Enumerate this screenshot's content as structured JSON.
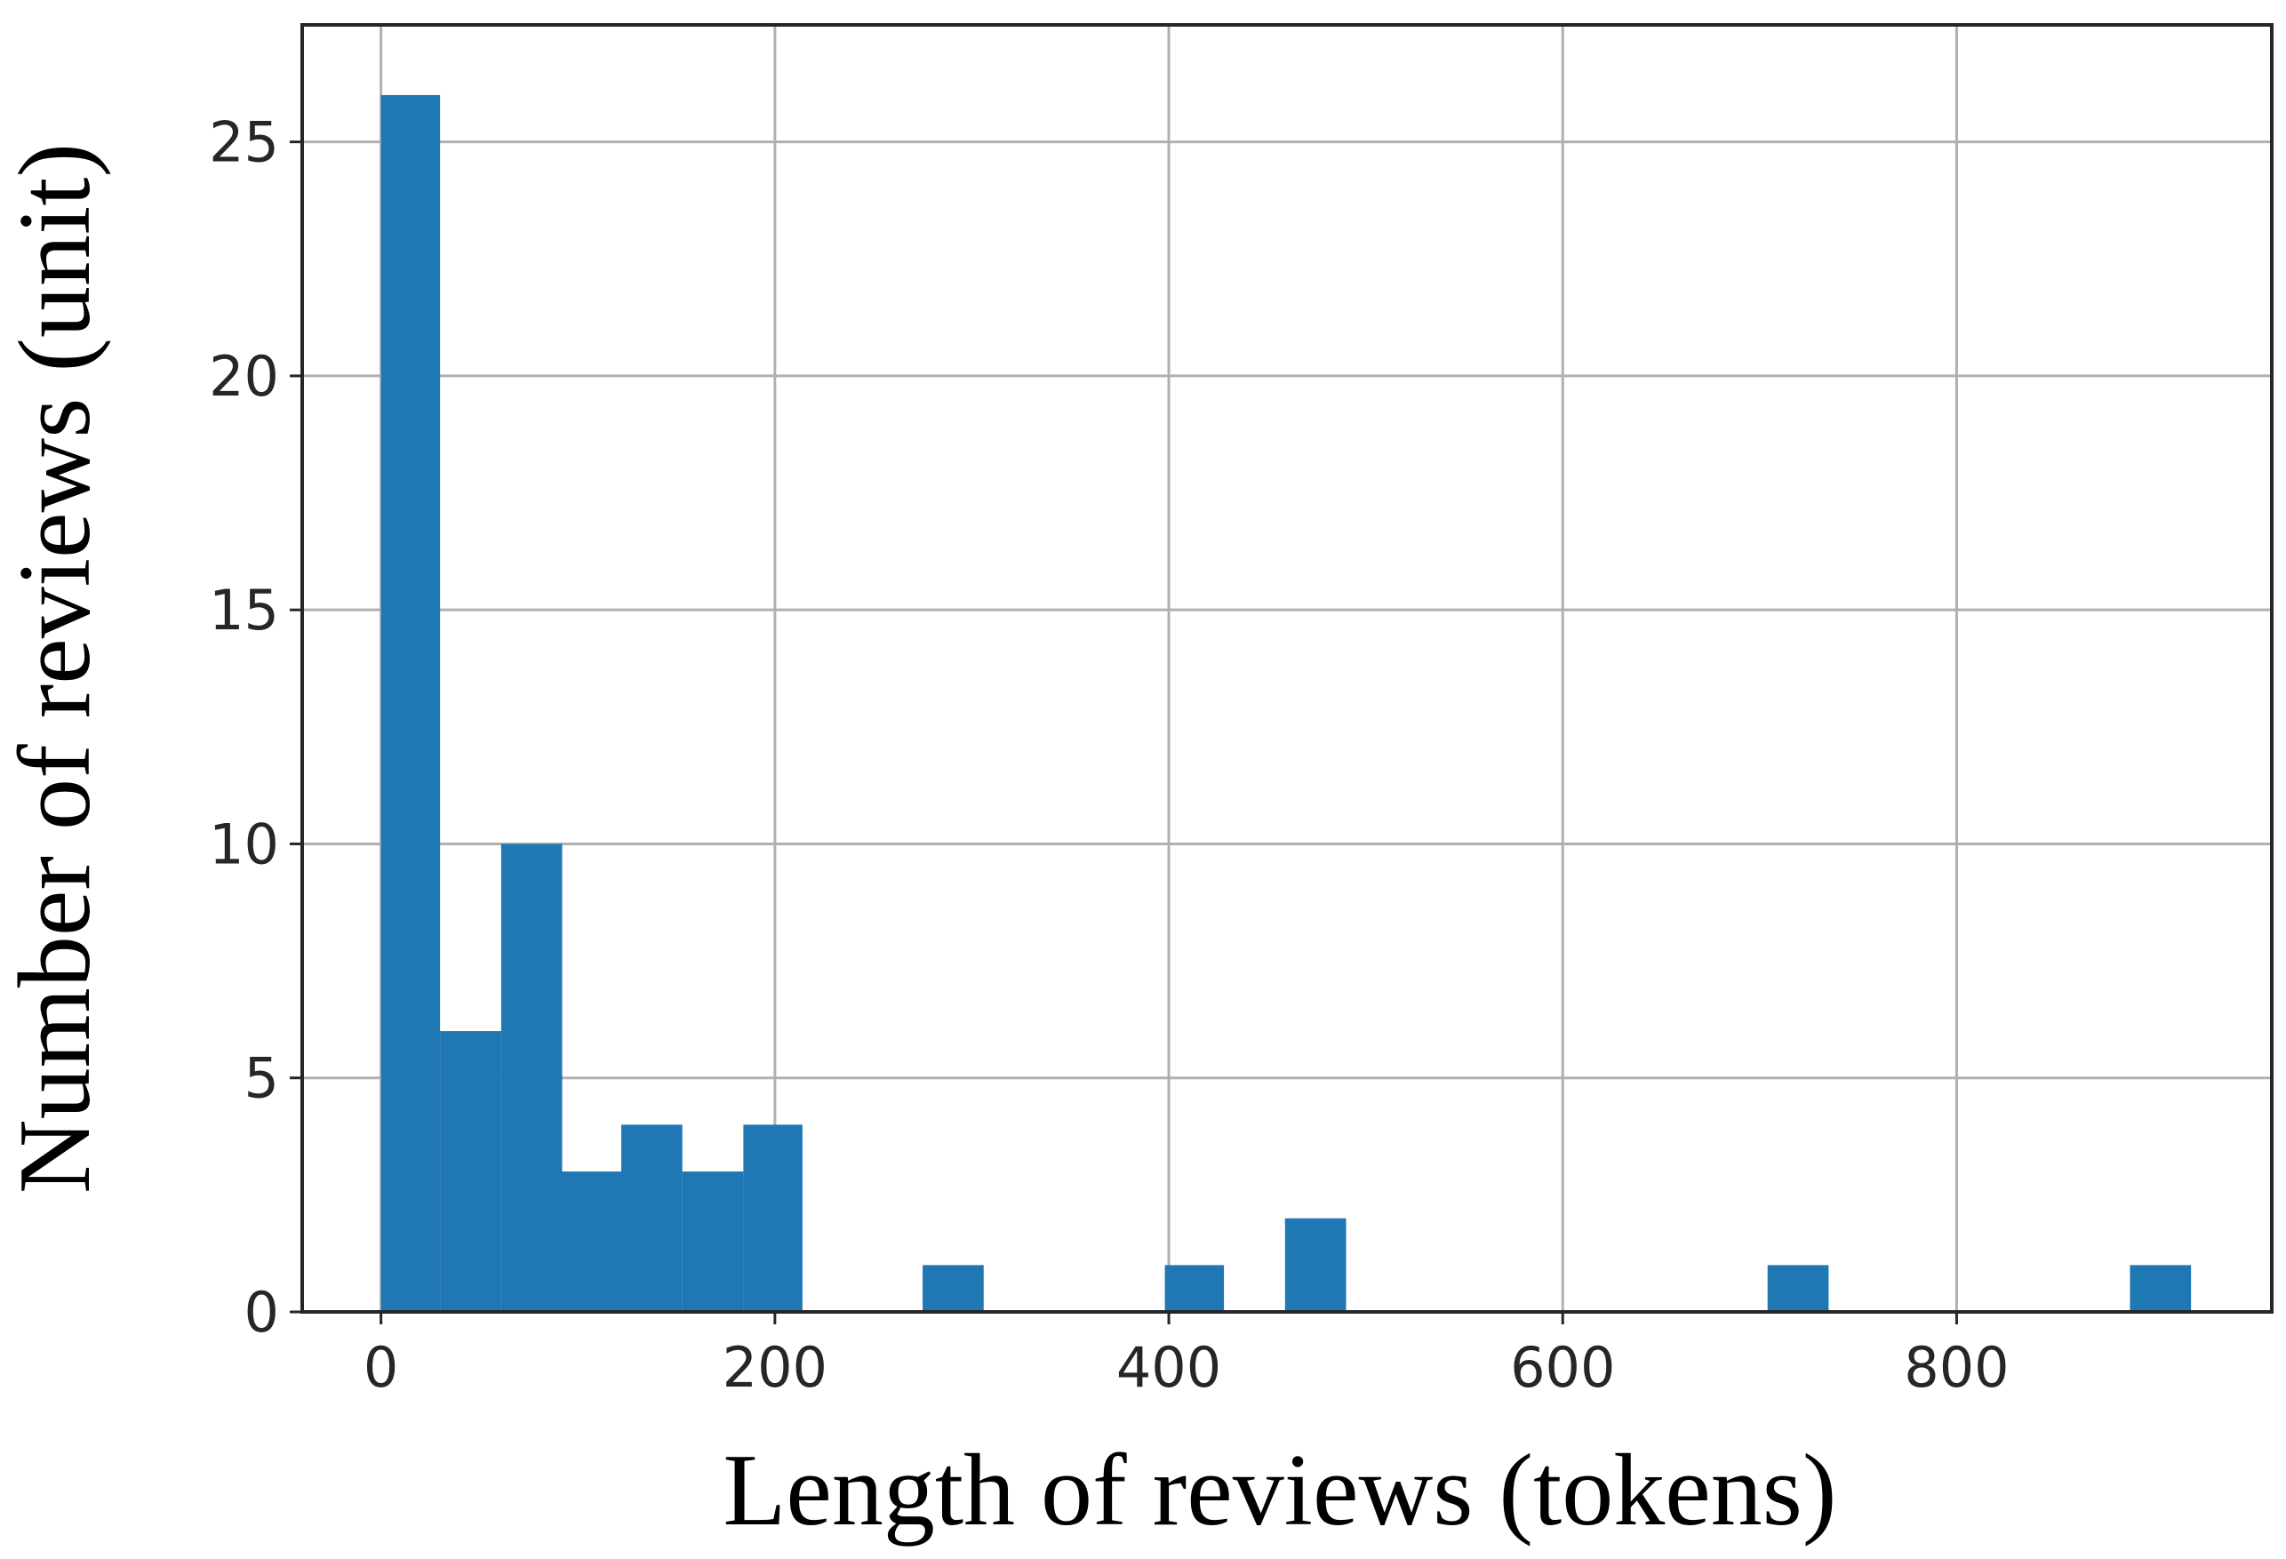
{
  "chart_data": {
    "type": "bar",
    "xlabel": "Length of reviews (tokens)",
    "ylabel": "Number of reviews (unit)",
    "xlim": [
      -40,
      960
    ],
    "ylim": [
      0,
      27.5
    ],
    "x_ticks": [
      "0",
      "200",
      "400",
      "600",
      "800"
    ],
    "y_ticks": [
      "0",
      "5",
      "10",
      "15",
      "20",
      "25"
    ],
    "grid": true,
    "bar_color": "#1f77b4",
    "bins": [
      {
        "x0": 0,
        "x1": 30,
        "count": 26
      },
      {
        "x0": 30,
        "x1": 61,
        "count": 6
      },
      {
        "x0": 61,
        "x1": 92,
        "count": 10
      },
      {
        "x0": 92,
        "x1": 122,
        "count": 3
      },
      {
        "x0": 122,
        "x1": 153,
        "count": 4
      },
      {
        "x0": 153,
        "x1": 184,
        "count": 3
      },
      {
        "x0": 184,
        "x1": 214,
        "count": 4
      },
      {
        "x0": 275,
        "x1": 306,
        "count": 1
      },
      {
        "x0": 398,
        "x1": 428,
        "count": 1
      },
      {
        "x0": 459,
        "x1": 490,
        "count": 2
      },
      {
        "x0": 704,
        "x1": 735,
        "count": 1
      },
      {
        "x0": 888,
        "x1": 919,
        "count": 1
      }
    ]
  }
}
